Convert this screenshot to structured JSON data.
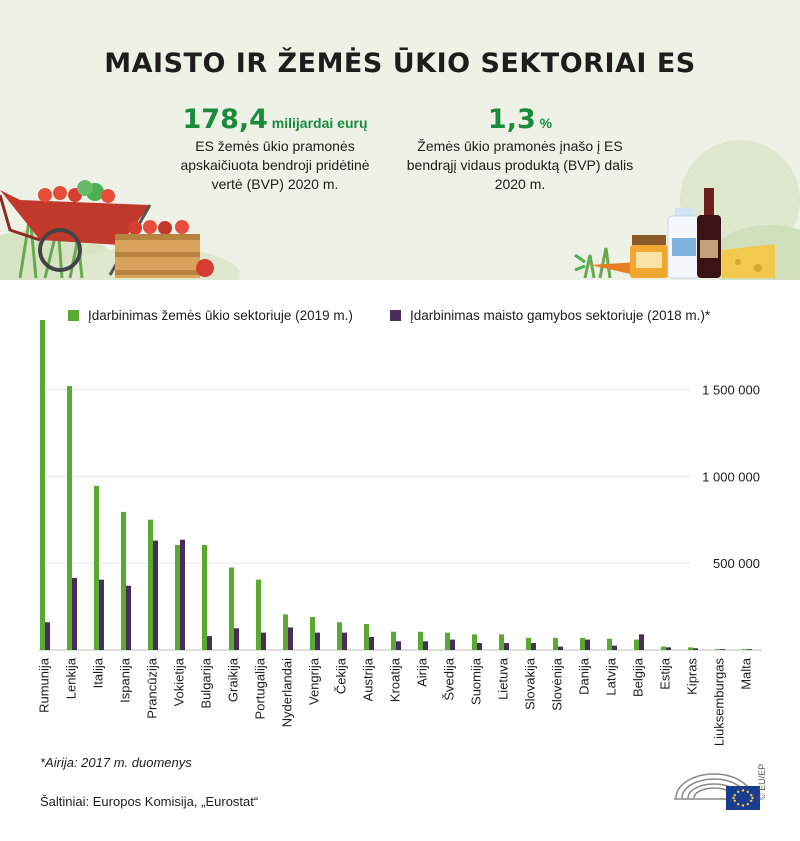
{
  "header": {
    "title": "MAISTO IR ŽEMĖS ŪKIO SEKTORIAI ES",
    "stat1": {
      "value": "178,4",
      "unit": "milijardai eurų",
      "desc": [
        "ES žemės ūkio pramonės",
        "apskaičiuota bendroji pridėtinė",
        "vertė (BVP) 2020 m."
      ]
    },
    "stat2": {
      "value": "1,3",
      "unit": "%",
      "desc": [
        "Žemės ūkio pramonės įnašo į ES",
        "bendrąjį vidaus produktą (BVP) dalis",
        "2020 m."
      ]
    }
  },
  "chart_data": {
    "type": "bar",
    "categories": [
      "Rumunija",
      "Lenkija",
      "Italija",
      "Ispanija",
      "Prancūzija",
      "Vokietija",
      "Bulgarija",
      "Graikija",
      "Portugalija",
      "Nyderlandai",
      "Vengrija",
      "Čekija",
      "Austrija",
      "Kroatija",
      "Airija",
      "Švedija",
      "Suomija",
      "Lietuva",
      "Slovakija",
      "Slovėnija",
      "Danija",
      "Latvija",
      "Belgija",
      "Estija",
      "Kipras",
      "Liuksemburgas",
      "Malta"
    ],
    "series": [
      {
        "name": "Įdarbinimas žemės ūkio sektoriuje (2019 m.)",
        "color": "#5aaa32",
        "values": [
          1900000,
          1520000,
          945000,
          795000,
          750000,
          605000,
          605000,
          475000,
          405000,
          205000,
          190000,
          160000,
          150000,
          105000,
          105000,
          100000,
          90000,
          90000,
          70000,
          70000,
          70000,
          65000,
          60000,
          20000,
          15000,
          5000,
          5000
        ]
      },
      {
        "name": "Įdarbinimas maisto gamybos sektoriuje (2018 m.)*",
        "color": "#4a2d5c",
        "values": [
          160000,
          415000,
          405000,
          370000,
          630000,
          635000,
          80000,
          125000,
          100000,
          130000,
          100000,
          100000,
          75000,
          50000,
          50000,
          60000,
          40000,
          40000,
          40000,
          20000,
          60000,
          25000,
          90000,
          15000,
          10000,
          5000,
          5000
        ]
      }
    ],
    "yticks": [
      {
        "value": 500000,
        "label": "500 000"
      },
      {
        "value": 1000000,
        "label": "1 000 000"
      },
      {
        "value": 1500000,
        "label": "1 500 000"
      }
    ],
    "ylim": [
      0,
      1900000
    ]
  },
  "footnote": "*Airija: 2017 m. duomenys",
  "source": "Šaltiniai: Europos Komisija, „Eurostat“",
  "copyright": "© EU/EP",
  "colors": {
    "green": "#5aaa32",
    "purple": "#4a2d5c",
    "accent": "#1a8a3c"
  }
}
